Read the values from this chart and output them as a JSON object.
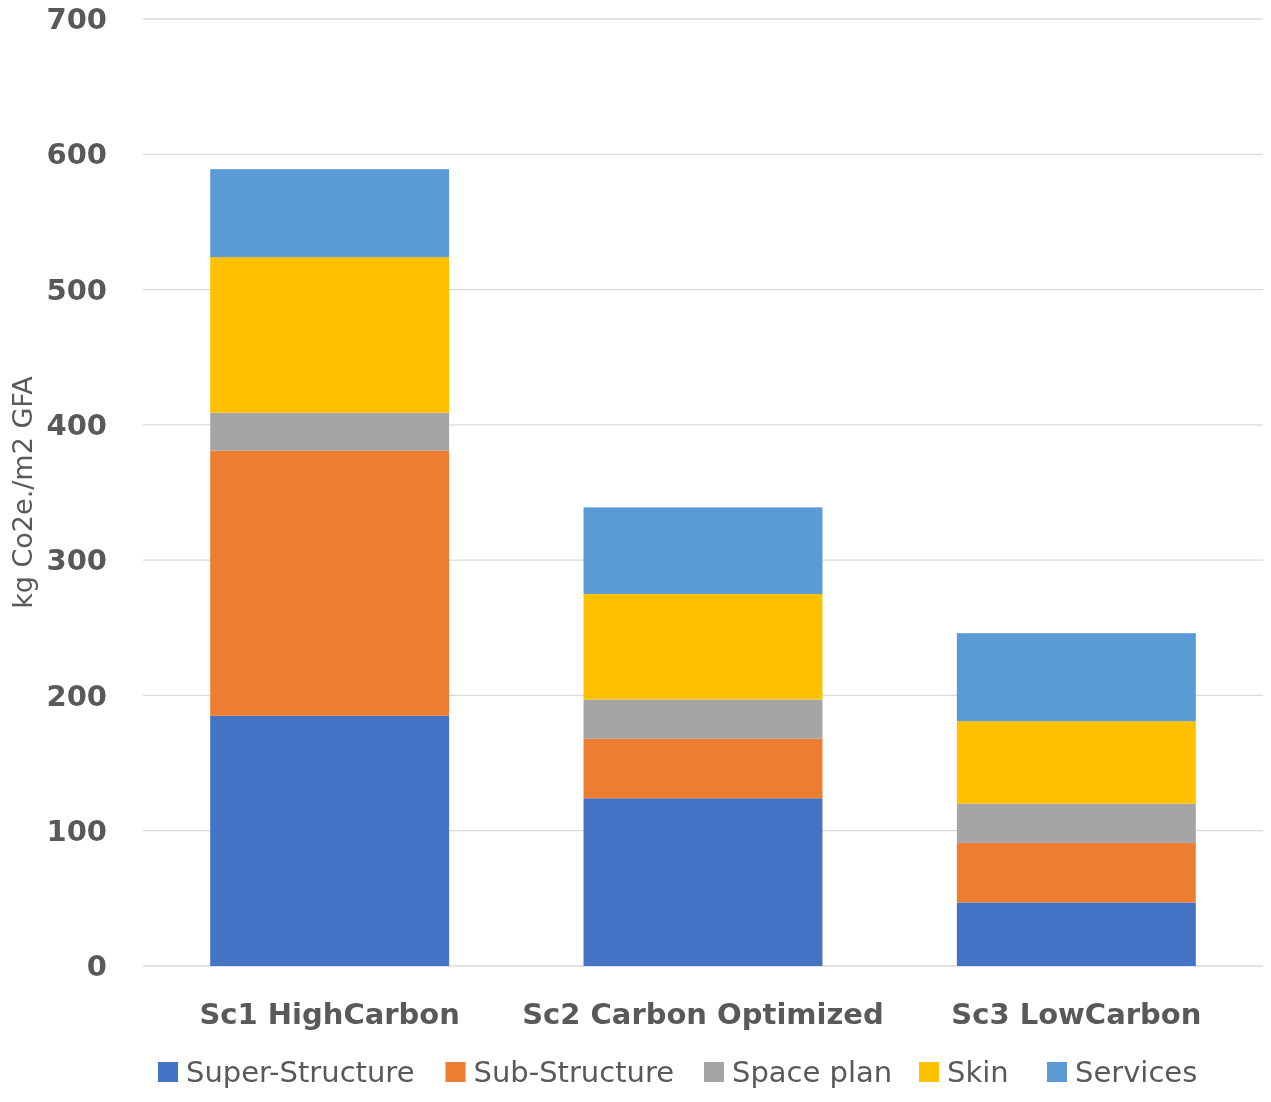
{
  "chart_data": {
    "type": "bar",
    "stacked": true,
    "ylabel": "kg Co2e./m2 GFA",
    "categories": [
      "Sc1 HighCarbon",
      "Sc2 Carbon Optimized",
      "Sc3 LowCarbon"
    ],
    "series": [
      {
        "name": "Super-Structure",
        "color": "#4472c4",
        "values": [
          185,
          124,
          47
        ]
      },
      {
        "name": "Sub-Structure",
        "color": "#ed7d31",
        "values": [
          196,
          44,
          44
        ]
      },
      {
        "name": "Space plan",
        "color": "#a5a5a5",
        "values": [
          28,
          29,
          29
        ]
      },
      {
        "name": "Skin",
        "color": "#ffc000",
        "values": [
          115,
          78,
          61
        ]
      },
      {
        "name": "Services",
        "color": "#5b9bd5",
        "values": [
          65,
          64,
          65
        ]
      }
    ],
    "ylim": [
      0,
      700
    ],
    "yticks": [
      0,
      100,
      200,
      300,
      400,
      500,
      600,
      700
    ],
    "grid": "y",
    "legend": "bottom"
  }
}
